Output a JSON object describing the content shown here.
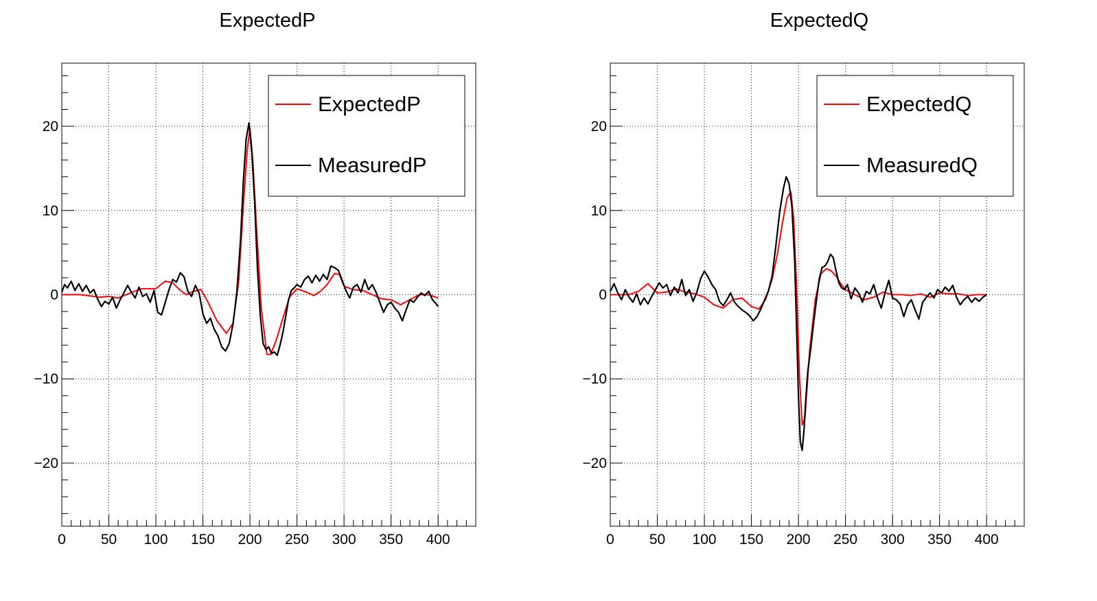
{
  "colors": {
    "expected": "#ff0000",
    "measured": "#000000",
    "grid": "#000000"
  },
  "chart_data": [
    {
      "type": "line",
      "title": "ExpectedP",
      "xlim": [
        0,
        440
      ],
      "ylim": [
        -27.5,
        27.5
      ],
      "x_ticks": [
        0,
        50,
        100,
        150,
        200,
        250,
        300,
        350,
        400
      ],
      "y_ticks": [
        -20,
        -10,
        0,
        10,
        20
      ],
      "x_tick_labels": [
        "0",
        "50",
        "100",
        "150",
        "200",
        "250",
        "300",
        "350",
        "400"
      ],
      "y_tick_labels": [
        "−20",
        "−10",
        "0",
        "10",
        "20"
      ],
      "grid": true,
      "legend_position": "top-right",
      "series": [
        {
          "name": "ExpectedP",
          "color": "#ff0000",
          "x": [
            0,
            20,
            40,
            50,
            60,
            75,
            85,
            100,
            110,
            118,
            125,
            132,
            140,
            148,
            155,
            165,
            175,
            182,
            188,
            193,
            197,
            200,
            203,
            207,
            212,
            218,
            222,
            228,
            235,
            242,
            250,
            260,
            268,
            275,
            282,
            290,
            295,
            300,
            310,
            320,
            330,
            340,
            350,
            360,
            370,
            380,
            390,
            400
          ],
          "y": [
            0,
            0,
            -0.3,
            -0.2,
            -0.4,
            0.3,
            0.7,
            0.7,
            1.6,
            1.4,
            0.6,
            0,
            0.4,
            0.6,
            -0.8,
            -3.1,
            -4.6,
            -3.4,
            1.5,
            10.5,
            17,
            19.8,
            16,
            8,
            -1.5,
            -7.1,
            -7.1,
            -5.4,
            -2.8,
            -0.3,
            0.7,
            0.3,
            -0.1,
            0.4,
            1.2,
            2.5,
            2.4,
            1,
            0.6,
            0.5,
            0,
            -0.5,
            -0.6,
            -1.2,
            -0.6,
            0,
            0,
            -0.4
          ]
        },
        {
          "name": "MeasuredP",
          "color": "#000000",
          "x": [
            0,
            3,
            6,
            10,
            14,
            18,
            22,
            26,
            30,
            34,
            38,
            42,
            46,
            50,
            54,
            58,
            62,
            66,
            70,
            74,
            78,
            82,
            86,
            90,
            94,
            98,
            102,
            106,
            110,
            114,
            118,
            122,
            126,
            130,
            134,
            138,
            142,
            146,
            150,
            154,
            158,
            162,
            166,
            170,
            174,
            178,
            182,
            186,
            190,
            193,
            196,
            199,
            202,
            205,
            208,
            211,
            214,
            217,
            220,
            223,
            226,
            229,
            232,
            235,
            238,
            241,
            244,
            247,
            250,
            254,
            258,
            262,
            266,
            270,
            274,
            278,
            282,
            286,
            290,
            294,
            298,
            302,
            306,
            310,
            314,
            318,
            322,
            326,
            330,
            334,
            338,
            342,
            346,
            350,
            354,
            358,
            362,
            366,
            370,
            374,
            378,
            382,
            386,
            390,
            394,
            398,
            400
          ],
          "y": [
            0.3,
            1.2,
            0.8,
            1.6,
            0.5,
            1.3,
            0.4,
            1.1,
            0.2,
            0.6,
            -0.5,
            -1.4,
            -0.8,
            -1.1,
            -0.3,
            -1.6,
            -0.6,
            0.2,
            1.1,
            0.3,
            -0.4,
            0.9,
            -0.2,
            0.1,
            -0.9,
            0.5,
            -2.1,
            -2.4,
            -0.9,
            0.6,
            1.8,
            1.5,
            2.6,
            2.1,
            0.4,
            -0.2,
            1.1,
            0.2,
            -2.3,
            -3.4,
            -2.8,
            -4.1,
            -4.9,
            -6.2,
            -6.7,
            -5.8,
            -3.5,
            0.2,
            6.5,
            13.5,
            18.5,
            20.4,
            17,
            11,
            3,
            -2.5,
            -5.8,
            -6.5,
            -6.2,
            -7,
            -6.8,
            -7.2,
            -6,
            -4.5,
            -2.6,
            -0.6,
            0.5,
            0.8,
            1.2,
            0.9,
            1.8,
            2.2,
            1.4,
            2.3,
            1.6,
            2.4,
            1.8,
            3.4,
            3.2,
            2.9,
            1.7,
            0.5,
            -0.4,
            0.9,
            1.2,
            0.3,
            1.8,
            0.6,
            1.2,
            0.3,
            -0.9,
            -2.1,
            -1.2,
            -0.9,
            -1.6,
            -2.1,
            -3.1,
            -1.8,
            -0.6,
            -0.9,
            -0.3,
            0.2,
            -0.1,
            0.4,
            -0.6,
            -1.1,
            -1.4
          ]
        }
      ]
    },
    {
      "type": "line",
      "title": "ExpectedQ",
      "xlim": [
        0,
        440
      ],
      "ylim": [
        -27.5,
        27.5
      ],
      "x_ticks": [
        0,
        50,
        100,
        150,
        200,
        250,
        300,
        350,
        400
      ],
      "y_ticks": [
        -20,
        -10,
        0,
        10,
        20
      ],
      "x_tick_labels": [
        "0",
        "50",
        "100",
        "150",
        "200",
        "250",
        "300",
        "350",
        "400"
      ],
      "y_tick_labels": [
        "−20",
        "−10",
        "0",
        "10",
        "20"
      ],
      "grid": true,
      "legend_position": "top-right",
      "series": [
        {
          "name": "ExpectedQ",
          "color": "#ff0000",
          "x": [
            0,
            20,
            30,
            40,
            50,
            60,
            70,
            80,
            90,
            100,
            110,
            120,
            130,
            140,
            150,
            158,
            165,
            172,
            178,
            183,
            188,
            192,
            195,
            198,
            201,
            204,
            207,
            212,
            218,
            224,
            230,
            235,
            240,
            245,
            250,
            260,
            270,
            280,
            290,
            300,
            310,
            320,
            330,
            340,
            350,
            360,
            370,
            380,
            390,
            400
          ],
          "y": [
            0,
            0,
            0.4,
            1.3,
            0.2,
            0.3,
            0.7,
            0.3,
            0.1,
            -0.3,
            -1.2,
            -1.6,
            -0.6,
            -0.4,
            -1.4,
            -1.7,
            -0.6,
            1.8,
            5,
            8.5,
            11.5,
            12.2,
            9,
            1,
            -9.5,
            -15.5,
            -14.5,
            -6.5,
            -0.5,
            2.5,
            3.1,
            2.8,
            2.2,
            1.3,
            0.6,
            0,
            -0.6,
            -0.3,
            0.3,
            0,
            0,
            -0.1,
            0.1,
            -0.3,
            0.2,
            0.1,
            0.1,
            -0.1,
            0,
            0
          ]
        },
        {
          "name": "MeasuredQ",
          "color": "#000000",
          "x": [
            0,
            4,
            8,
            12,
            16,
            20,
            24,
            28,
            32,
            36,
            40,
            44,
            48,
            52,
            56,
            60,
            64,
            68,
            72,
            76,
            80,
            84,
            88,
            92,
            96,
            100,
            104,
            108,
            112,
            116,
            120,
            124,
            128,
            132,
            136,
            140,
            144,
            148,
            152,
            156,
            160,
            164,
            168,
            172,
            176,
            180,
            184,
            187,
            190,
            193,
            196,
            198,
            200,
            202,
            204,
            206,
            208,
            210,
            213,
            216,
            219,
            222,
            225,
            228,
            231,
            234,
            237,
            240,
            243,
            246,
            249,
            252,
            256,
            260,
            264,
            268,
            272,
            276,
            280,
            284,
            288,
            292,
            296,
            300,
            304,
            308,
            312,
            316,
            320,
            324,
            328,
            332,
            336,
            340,
            344,
            348,
            352,
            356,
            360,
            364,
            368,
            372,
            376,
            380,
            384,
            388,
            392,
            396,
            400
          ],
          "y": [
            0.4,
            1.3,
            0.2,
            -0.6,
            0.6,
            -0.3,
            -0.9,
            0.1,
            -1.2,
            -0.4,
            -1.1,
            -0.2,
            0.6,
            1.4,
            0.8,
            1.2,
            -0.1,
            0.9,
            0.2,
            1.8,
            -0.1,
            0.6,
            -0.8,
            0.3,
            1.9,
            2.8,
            2.1,
            1.2,
            0.6,
            -0.8,
            -1.3,
            -0.6,
            0.2,
            -0.9,
            -1.4,
            -1.8,
            -2.1,
            -2.5,
            -3.1,
            -2.6,
            -1.7,
            -0.6,
            0.4,
            2.2,
            5.8,
            9.8,
            12.6,
            14,
            13.2,
            10.5,
            4,
            -4,
            -12,
            -17.5,
            -18.5,
            -16,
            -12,
            -9,
            -6.5,
            -3.5,
            -0.8,
            1.8,
            3.2,
            3.4,
            3.9,
            4.8,
            4.4,
            2.8,
            1.4,
            0.8,
            0.6,
            1.2,
            -0.5,
            0.8,
            0.2,
            -0.9,
            0.4,
            0.1,
            1.2,
            -0.4,
            -1.6,
            0.2,
            1.7,
            -0.4,
            -0.6,
            -1.1,
            -2.6,
            -1.2,
            -0.6,
            -1.8,
            -2.9,
            -0.9,
            -0.3,
            0.2,
            -0.4,
            0.6,
            0.2,
            0.9,
            0.4,
            1.1,
            -0.3,
            -1.2,
            -0.6,
            -0.2,
            -0.9,
            -0.4,
            -0.8,
            -0.3,
            0
          ]
        }
      ]
    }
  ]
}
